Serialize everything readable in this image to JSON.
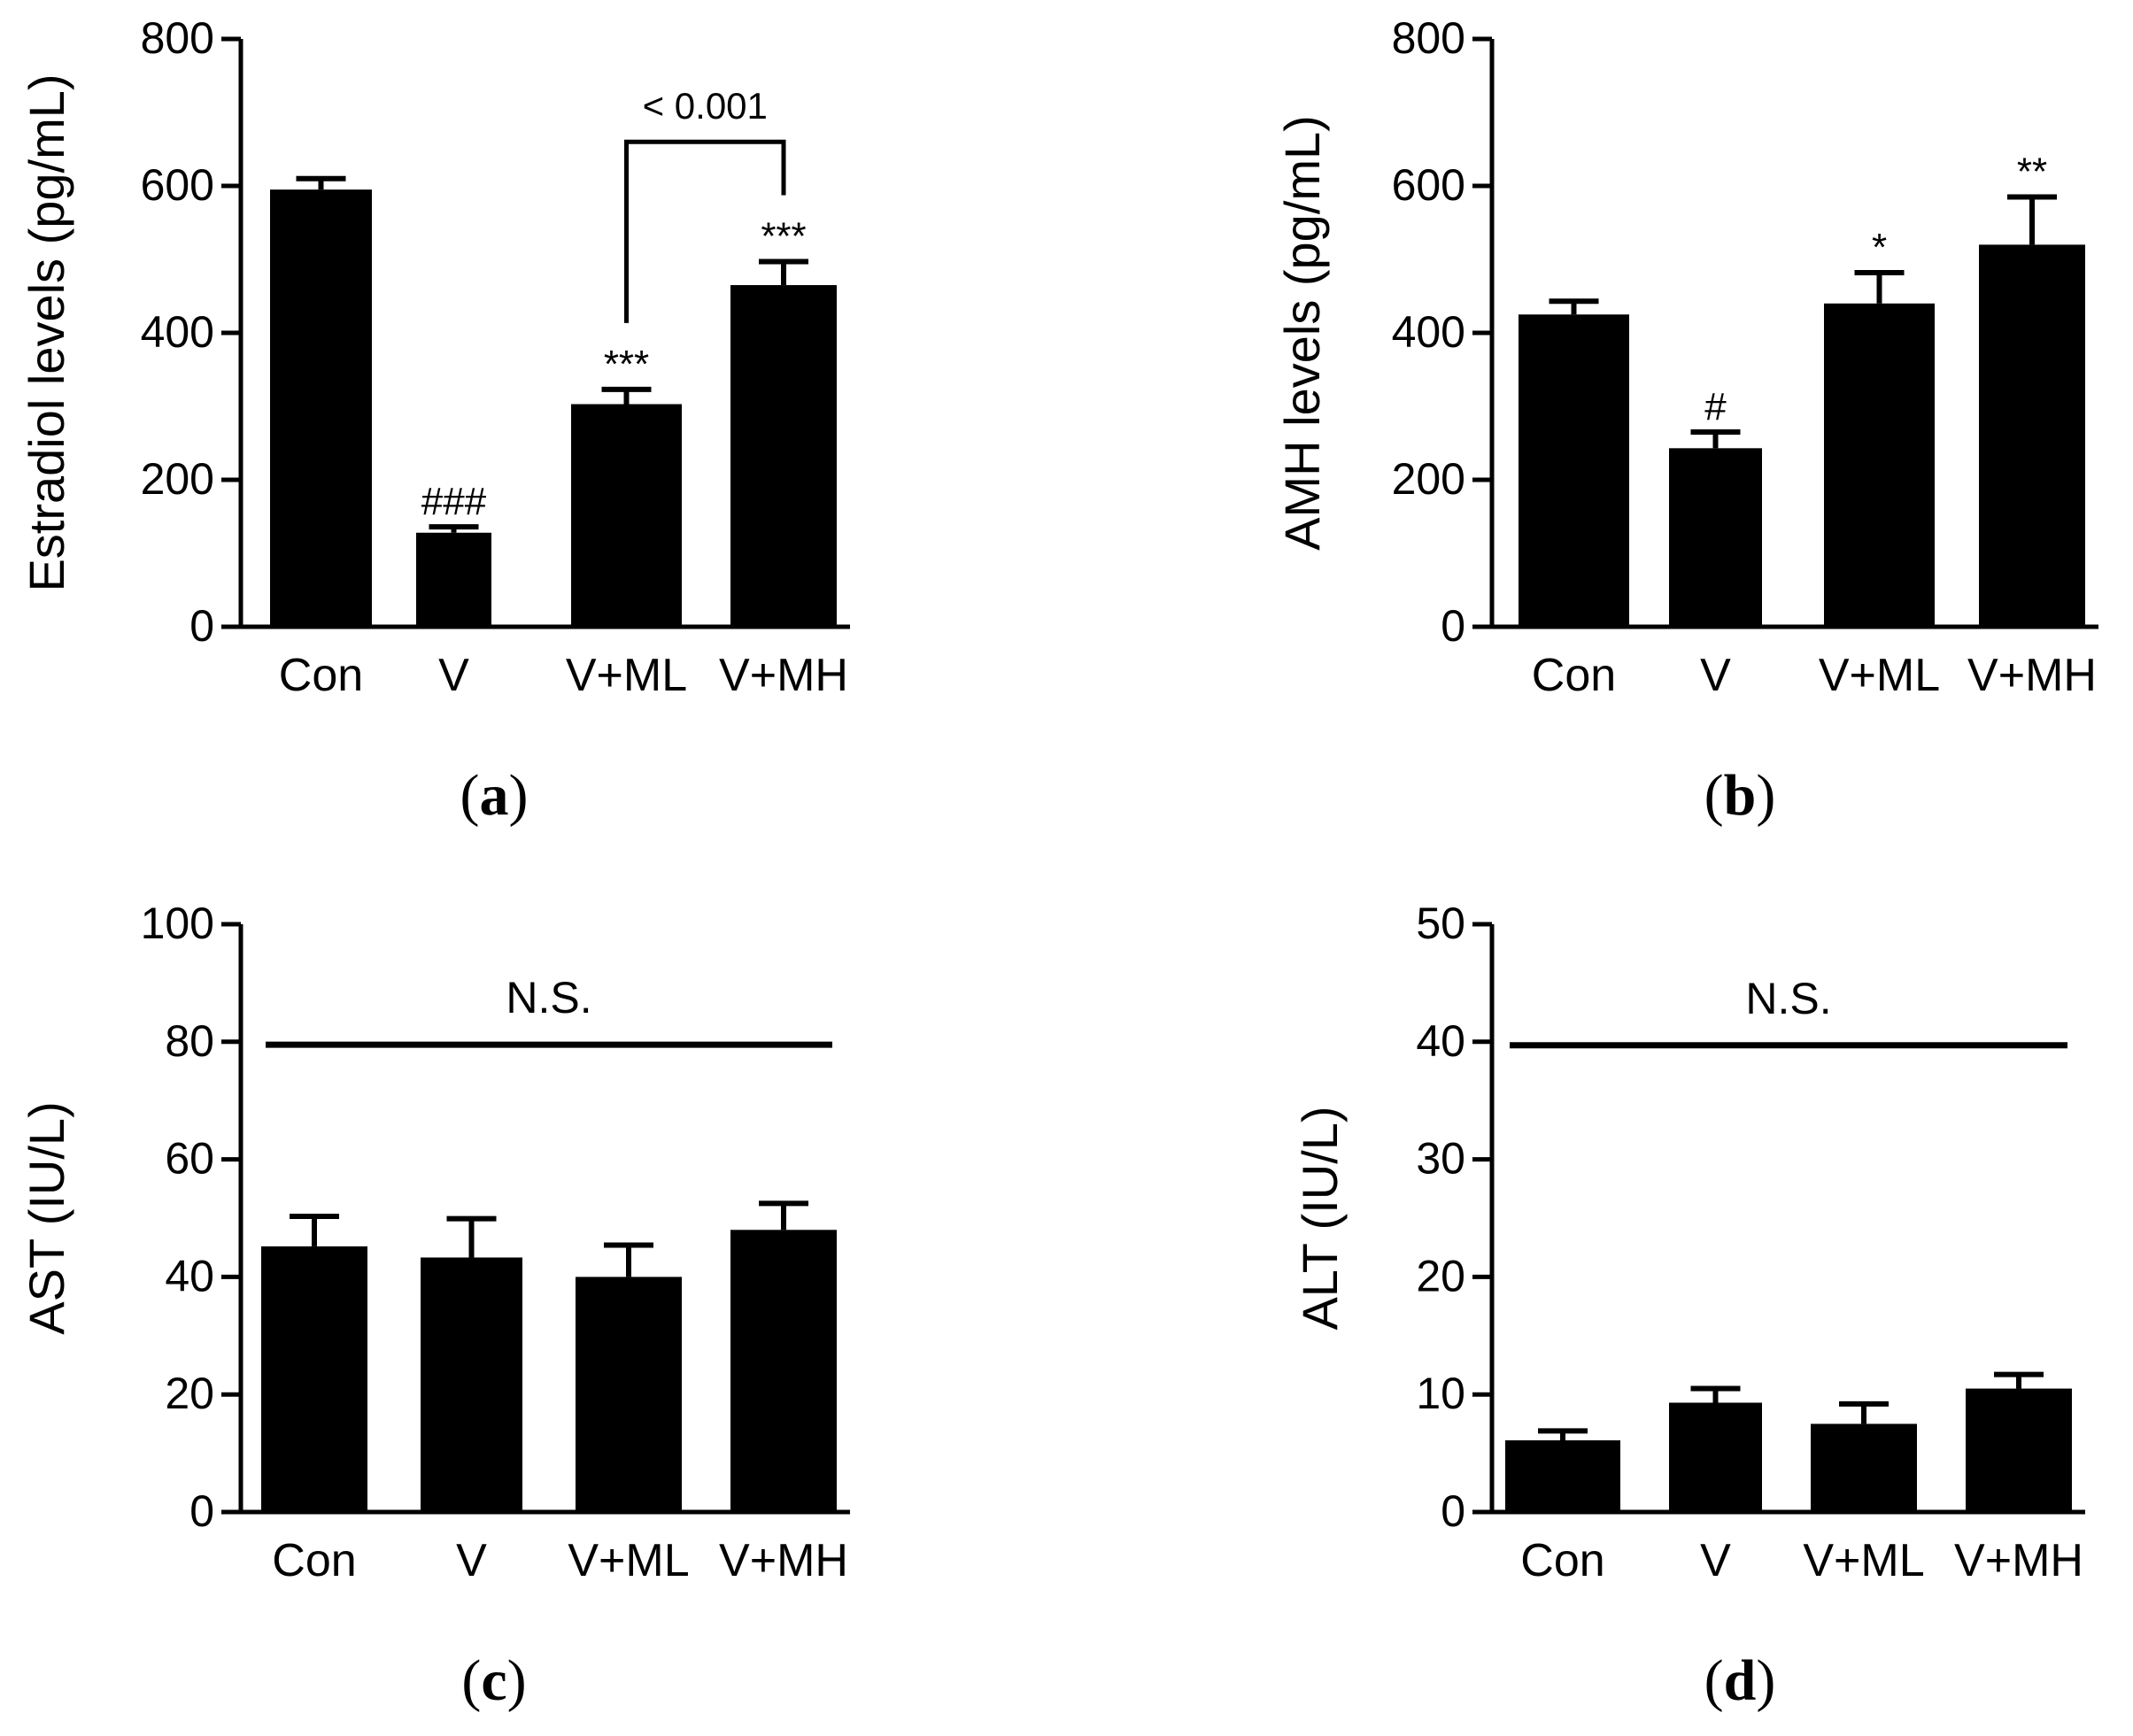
{
  "figure": {
    "colors": {
      "bar": "#000000",
      "axis": "#000000",
      "background": "#ffffff"
    }
  },
  "chart_data": [
    {
      "id": "a",
      "type": "bar",
      "panel_label": "(a)",
      "panel_letter": "a",
      "title": "",
      "xlabel": "",
      "ylabel": "Estradiol levels (pg/mL)",
      "categories": [
        "Con",
        "V",
        "V+ML",
        "V+MH"
      ],
      "values": [
        595,
        128,
        303,
        465
      ],
      "errors": [
        15,
        8,
        20,
        32
      ],
      "annotations": [
        "",
        "###",
        "***",
        "***"
      ],
      "yticks": [
        0,
        200,
        400,
        600,
        800
      ],
      "ylim": [
        0,
        800
      ],
      "comparison": {
        "from": 2,
        "to": 3,
        "label": "< 0.001",
        "y": 660
      },
      "ns": null
    },
    {
      "id": "b",
      "type": "bar",
      "panel_label": "(b)",
      "panel_letter": "b",
      "title": "",
      "xlabel": "",
      "ylabel": "AMH levels (pg/mL)",
      "categories": [
        "Con",
        "V",
        "V+ML",
        "V+MH"
      ],
      "values": [
        425,
        243,
        440,
        520
      ],
      "errors": [
        18,
        22,
        42,
        65
      ],
      "annotations": [
        "",
        "#",
        "*",
        "**"
      ],
      "yticks": [
        0,
        200,
        400,
        600,
        800
      ],
      "ylim": [
        0,
        800
      ],
      "comparison": null,
      "ns": null
    },
    {
      "id": "c",
      "type": "bar",
      "panel_label": "(c)",
      "panel_letter": "c",
      "title": "",
      "xlabel": "",
      "ylabel": "AST (IU/L)",
      "categories": [
        "Con",
        "V",
        "V+ML",
        "V+MH"
      ],
      "values": [
        45.2,
        43.3,
        40,
        48
      ],
      "errors": [
        5.1,
        6.6,
        5.4,
        4.5
      ],
      "annotations": [
        "",
        "",
        "",
        ""
      ],
      "yticks": [
        0,
        20,
        40,
        60,
        80,
        100
      ],
      "ylim": [
        0,
        100
      ],
      "comparison": null,
      "ns": {
        "label": "N.S.",
        "y": 79.5
      }
    },
    {
      "id": "d",
      "type": "bar",
      "panel_label": "(d)",
      "panel_letter": "d",
      "title": "",
      "xlabel": "",
      "ylabel": "ALT (IU/L)",
      "categories": [
        "Con",
        "V",
        "V+ML",
        "V+MH"
      ],
      "values": [
        6.1,
        9.3,
        7.5,
        10.5
      ],
      "errors": [
        0.8,
        1.2,
        1.7,
        1.2
      ],
      "annotations": [
        "",
        "",
        "",
        ""
      ],
      "yticks": [
        0,
        10,
        20,
        30,
        40,
        50
      ],
      "ylim": [
        0,
        50
      ],
      "comparison": null,
      "ns": {
        "label": "N.S.",
        "y": 39.7
      }
    }
  ]
}
